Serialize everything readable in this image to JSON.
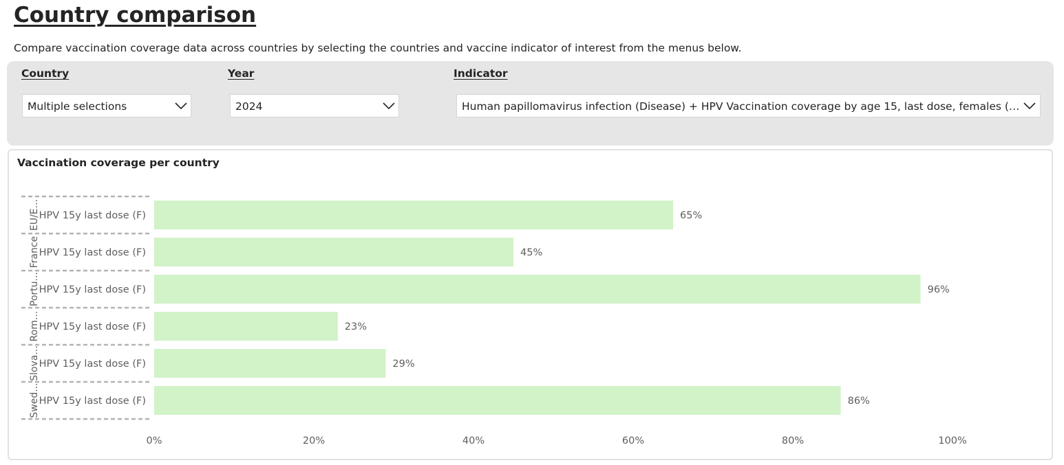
{
  "page": {
    "title": "Country comparison",
    "description": "Compare vaccination coverage data across countries by selecting the countries and vaccine indicator of interest from the menus below."
  },
  "filters": {
    "country": {
      "label": "Country",
      "value": "Multiple selections"
    },
    "year": {
      "label": "Year",
      "value": "2024"
    },
    "indicator": {
      "label": "Indicator",
      "value": "Human papillomavirus infection (Disease) + HPV Vaccination coverage by age 15, last dose, females (Va..."
    }
  },
  "chart": {
    "title": "Vaccination coverage per country"
  },
  "colors": {
    "bar": "#d2f2c8",
    "panel": "#e6e6e6",
    "text": "#252423",
    "muted": "#605e5c"
  },
  "chart_data": {
    "type": "bar",
    "orientation": "horizontal",
    "title": "Vaccination coverage per country",
    "groups": [
      "EU/E...",
      "France",
      "Portu...",
      "Rom...",
      "Slova...",
      "Swed..."
    ],
    "categories": [
      "HPV 15y last dose (F)",
      "HPV 15y last dose (F)",
      "HPV 15y last dose (F)",
      "HPV 15y last dose (F)",
      "HPV 15y last dose (F)",
      "HPV 15y last dose (F)"
    ],
    "values": [
      65,
      45,
      96,
      23,
      29,
      86
    ],
    "data_labels": [
      "65%",
      "45%",
      "96%",
      "23%",
      "29%",
      "86%"
    ],
    "xlim": [
      0,
      100
    ],
    "xticks": [
      "0%",
      "20%",
      "40%",
      "60%",
      "80%",
      "100%"
    ],
    "grid": false,
    "legend": "none"
  }
}
